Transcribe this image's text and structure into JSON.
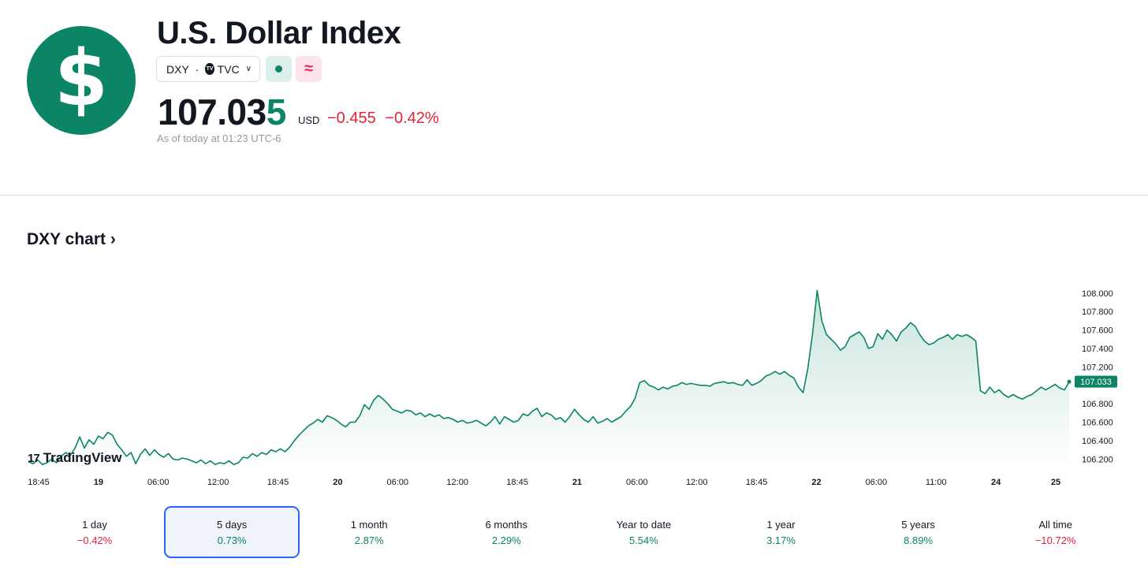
{
  "header": {
    "logo_symbol": "$",
    "title": "U.S. Dollar Index",
    "symbol": "DXY",
    "separator": "·",
    "exchange_badge": "TV",
    "exchange": "TVC",
    "status_icon": "green-dot-icon",
    "approx_icon": "≈",
    "price_main": "107.03",
    "price_last_digit": "5",
    "currency": "USD",
    "change_abs": "−0.455",
    "change_pct": "−0.42%",
    "as_of": "As of today at 01:23 UTC-6",
    "colors": {
      "brand": "#0b8566",
      "negative": "#e0243a",
      "positive": "#0b8566"
    }
  },
  "chart_section": {
    "heading": "DXY chart",
    "heading_chevron": "›",
    "brand_mark": "17",
    "brand_name": "TradingView"
  },
  "chart_data": {
    "type": "area",
    "ylim": [
      106.1,
      108.05
    ],
    "y_ticks": [
      "108.000",
      "107.800",
      "107.600",
      "107.400",
      "107.200",
      "106.800",
      "106.600",
      "106.400",
      "106.200"
    ],
    "x_ticks": [
      {
        "label": "18:45",
        "bold": false
      },
      {
        "label": "19",
        "bold": true
      },
      {
        "label": "06:00",
        "bold": false
      },
      {
        "label": "12:00",
        "bold": false
      },
      {
        "label": "18:45",
        "bold": false
      },
      {
        "label": "20",
        "bold": true
      },
      {
        "label": "06:00",
        "bold": false
      },
      {
        "label": "12:00",
        "bold": false
      },
      {
        "label": "18:45",
        "bold": false
      },
      {
        "label": "21",
        "bold": true
      },
      {
        "label": "06:00",
        "bold": false
      },
      {
        "label": "12:00",
        "bold": false
      },
      {
        "label": "18:45",
        "bold": false
      },
      {
        "label": "22",
        "bold": true
      },
      {
        "label": "06:00",
        "bold": false
      },
      {
        "label": "11:00",
        "bold": false
      },
      {
        "label": "24",
        "bold": true
      },
      {
        "label": "25",
        "bold": true
      }
    ],
    "last_value_label": "107.033",
    "series": [
      {
        "values": [
          106.17,
          106.15,
          106.19,
          106.14,
          106.16,
          106.2,
          106.16,
          106.23,
          106.27,
          106.24,
          106.32,
          106.44,
          106.32,
          106.41,
          106.36,
          106.45,
          106.42,
          106.49,
          106.46,
          106.36,
          106.3,
          106.23,
          106.27,
          106.15,
          106.25,
          106.31,
          106.24,
          106.3,
          106.25,
          106.22,
          106.26,
          106.2,
          106.19,
          106.21,
          106.2,
          106.18,
          106.16,
          106.19,
          106.15,
          106.18,
          106.14,
          106.16,
          106.15,
          106.18,
          106.14,
          106.16,
          106.22,
          106.21,
          106.26,
          106.23,
          106.27,
          106.25,
          106.3,
          106.28,
          106.31,
          106.28,
          106.33,
          106.4,
          106.46,
          106.51,
          106.56,
          106.59,
          106.63,
          106.6,
          106.67,
          106.65,
          106.62,
          106.58,
          106.55,
          106.6,
          106.6,
          106.67,
          106.79,
          106.74,
          106.84,
          106.89,
          106.85,
          106.8,
          106.74,
          106.72,
          106.7,
          106.73,
          106.72,
          106.68,
          106.7,
          106.66,
          106.69,
          106.66,
          106.68,
          106.64,
          106.65,
          106.63,
          106.6,
          106.62,
          106.59,
          106.6,
          106.62,
          106.59,
          106.56,
          106.6,
          106.66,
          106.58,
          106.66,
          106.63,
          106.6,
          106.62,
          106.69,
          106.67,
          106.72,
          106.75,
          106.66,
          106.7,
          106.68,
          106.63,
          106.65,
          106.6,
          106.66,
          106.74,
          106.68,
          106.63,
          106.6,
          106.66,
          106.59,
          106.61,
          106.64,
          106.6,
          106.63,
          106.66,
          106.72,
          106.77,
          106.86,
          107.03,
          107.05,
          107.0,
          106.98,
          106.95,
          106.98,
          106.96,
          106.99,
          107.0,
          107.03,
          107.01,
          107.02,
          107.01,
          107.0,
          107.0,
          106.99,
          107.02,
          107.03,
          107.04,
          107.02,
          107.03,
          107.01,
          107.0,
          107.06,
          107.0,
          107.02,
          107.05,
          107.1,
          107.12,
          107.15,
          107.12,
          107.15,
          107.11,
          107.08,
          106.98,
          106.92,
          107.18,
          107.55,
          108.03,
          107.7,
          107.55,
          107.5,
          107.45,
          107.38,
          107.42,
          107.52,
          107.55,
          107.58,
          107.52,
          107.4,
          107.42,
          107.56,
          107.5,
          107.6,
          107.55,
          107.48,
          107.58,
          107.62,
          107.68,
          107.64,
          107.55,
          107.48,
          107.44,
          107.46,
          107.5,
          107.52,
          107.55,
          107.5,
          107.55,
          107.53,
          107.55,
          107.52,
          107.48,
          106.94,
          106.91,
          106.98,
          106.92,
          106.95,
          106.9,
          106.87,
          106.9,
          106.87,
          106.85,
          106.88,
          106.9,
          106.94,
          106.98,
          106.95,
          106.98,
          107.01,
          106.97,
          106.95,
          107.04
        ]
      }
    ]
  },
  "periods": [
    {
      "label": "1 day",
      "pct": "−0.42%",
      "sign": "neg",
      "active": false
    },
    {
      "label": "5 days",
      "pct": "0.73%",
      "sign": "pos",
      "active": true
    },
    {
      "label": "1 month",
      "pct": "2.87%",
      "sign": "pos",
      "active": false
    },
    {
      "label": "6 months",
      "pct": "2.29%",
      "sign": "pos",
      "active": false
    },
    {
      "label": "Year to date",
      "pct": "5.54%",
      "sign": "pos",
      "active": false
    },
    {
      "label": "1 year",
      "pct": "3.17%",
      "sign": "pos",
      "active": false
    },
    {
      "label": "5 years",
      "pct": "8.89%",
      "sign": "pos",
      "active": false
    },
    {
      "label": "All time",
      "pct": "−10.72%",
      "sign": "neg",
      "active": false
    }
  ]
}
